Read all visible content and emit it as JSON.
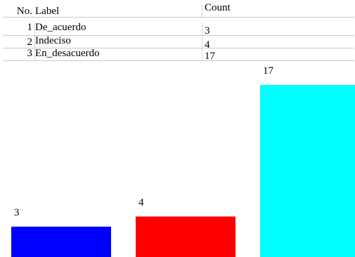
{
  "table": {
    "headers": {
      "no": "No.",
      "label": "Label",
      "count": "Count"
    },
    "rows": [
      {
        "no": "1",
        "label": "De_acuerdo",
        "count": "3"
      },
      {
        "no": "2",
        "label": "Indeciso",
        "count": "4"
      },
      {
        "no": "3",
        "label": "En_desacuerdo",
        "count": "17"
      }
    ]
  },
  "chart_data": {
    "type": "bar",
    "categories": [
      "De_acuerdo",
      "Indeciso",
      "En_desacuerdo"
    ],
    "values": [
      3,
      4,
      17
    ],
    "colors": [
      "#0000ff",
      "#ff0000",
      "#00ffff"
    ],
    "title": "",
    "xlabel": "",
    "ylabel": "",
    "ylim": [
      0,
      17
    ],
    "grid": false,
    "legend": "none",
    "data_labels": true
  }
}
